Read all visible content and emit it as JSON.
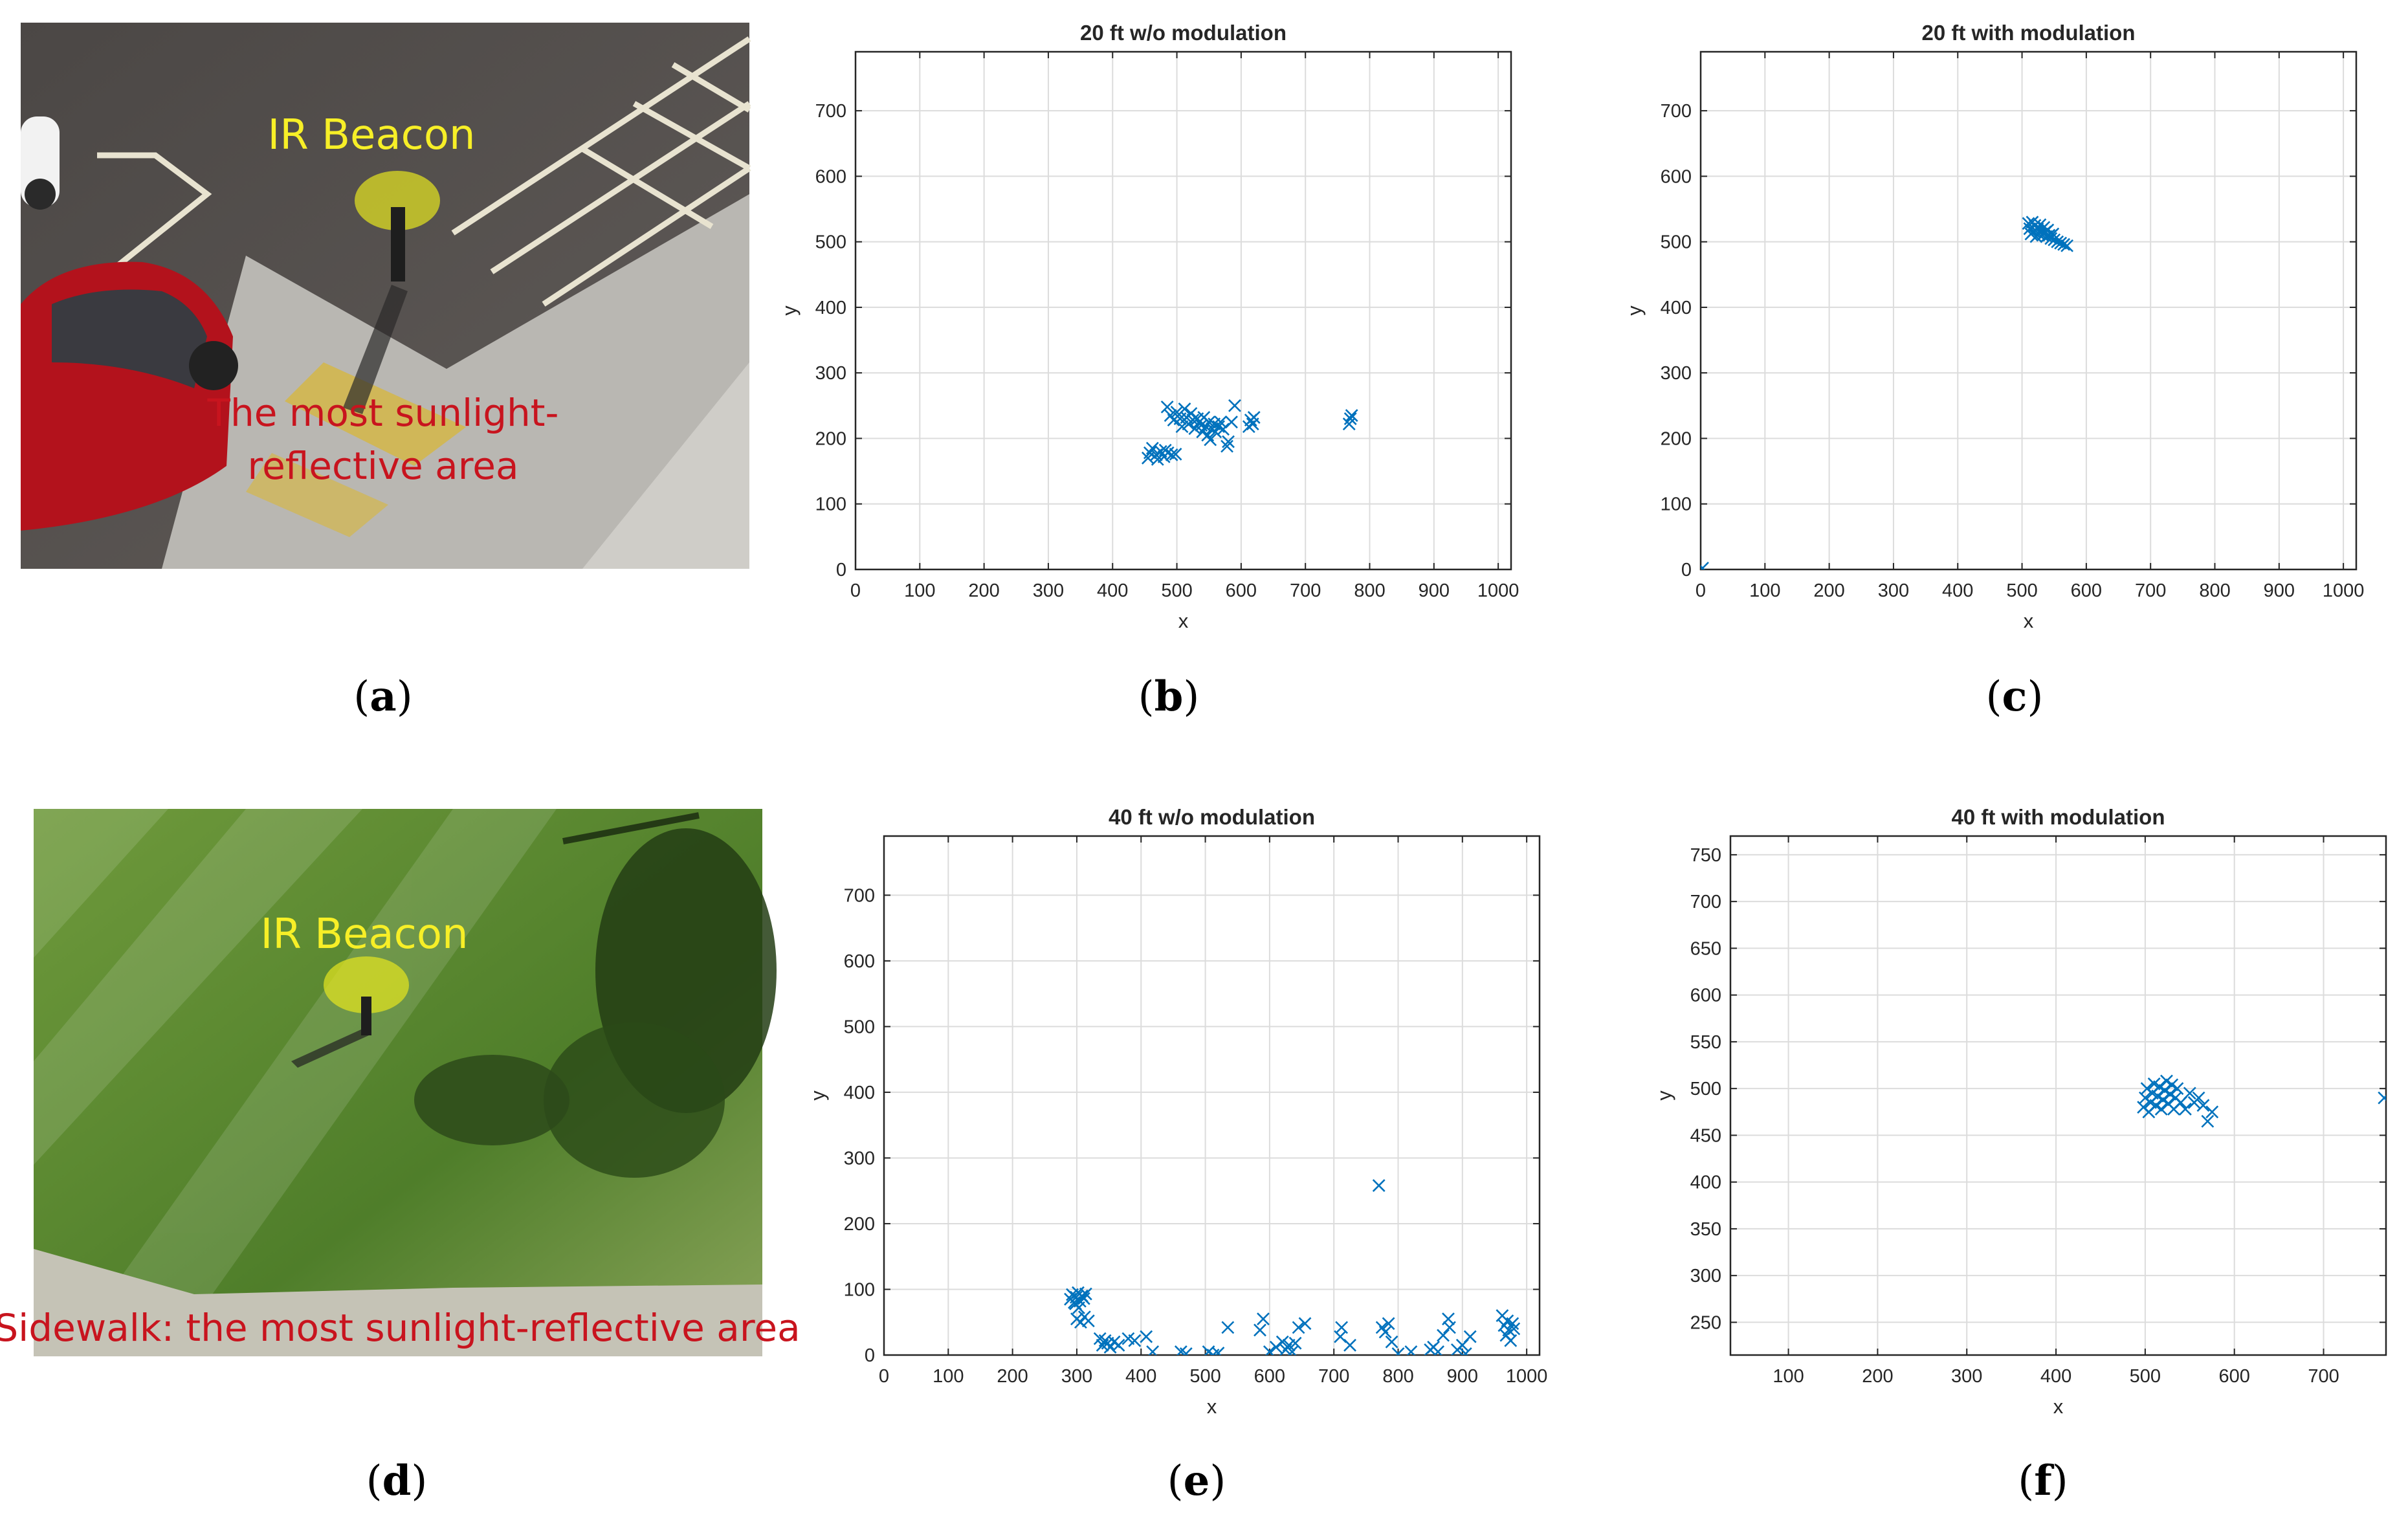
{
  "photos": [
    {
      "id": "a",
      "sub": "a",
      "labels": [
        "IR Beacon",
        "The most sunlight-",
        "reflective area"
      ]
    },
    {
      "id": "d",
      "sub": "d",
      "labels": [
        "IR Beacon",
        "Sidewalk: the most sunlight-reflective area"
      ]
    }
  ],
  "colors": {
    "marker": "#0072BD",
    "grid": "#dcdcdc",
    "axis": "#262626",
    "beacon": "#e6e620",
    "asphalt": "#55514f",
    "grass": "#5e8a33"
  },
  "chart_data": [
    {
      "id": "b",
      "sub": "b",
      "type": "scatter",
      "marker": "x",
      "title": "20 ft w/o modulation",
      "xlabel": "x",
      "ylabel": "y",
      "xlim": [
        0,
        1020
      ],
      "ylim": [
        0,
        790
      ],
      "grid": true,
      "xticks": [
        0,
        100,
        200,
        300,
        400,
        500,
        600,
        700,
        800,
        900,
        1000
      ],
      "yticks": [
        0,
        100,
        200,
        300,
        400,
        500,
        600,
        700
      ],
      "series": [
        {
          "points": [
            [
              455,
              170
            ],
            [
              458,
              178
            ],
            [
              462,
              185
            ],
            [
              468,
              175
            ],
            [
              475,
              180
            ],
            [
              480,
              172
            ],
            [
              486,
              178
            ],
            [
              492,
              175
            ],
            [
              498,
              176
            ],
            [
              482,
              182
            ],
            [
              470,
              168
            ],
            [
              485,
              248
            ],
            [
              490,
              235
            ],
            [
              495,
              228
            ],
            [
              500,
              240
            ],
            [
              505,
              230
            ],
            [
              508,
              218
            ],
            [
              512,
              245
            ],
            [
              515,
              232
            ],
            [
              518,
              222
            ],
            [
              522,
              238
            ],
            [
              525,
              228
            ],
            [
              528,
              215
            ],
            [
              532,
              230
            ],
            [
              535,
              225
            ],
            [
              538,
              220
            ],
            [
              540,
              210
            ],
            [
              542,
              232
            ],
            [
              545,
              218
            ],
            [
              548,
              205
            ],
            [
              550,
              225
            ],
            [
              552,
              198
            ],
            [
              555,
              215
            ],
            [
              558,
              222
            ],
            [
              560,
              210
            ],
            [
              565,
              218
            ],
            [
              568,
              225
            ],
            [
              572,
              214
            ],
            [
              578,
              188
            ],
            [
              580,
              195
            ],
            [
              585,
              225
            ],
            [
              590,
              250
            ],
            [
              612,
              218
            ],
            [
              615,
              228
            ],
            [
              620,
              232
            ],
            [
              618,
              222
            ],
            [
              768,
              222
            ],
            [
              770,
              230
            ],
            [
              772,
              235
            ]
          ]
        }
      ]
    },
    {
      "id": "c",
      "sub": "c",
      "type": "scatter",
      "marker": "x",
      "title": "20 ft with modulation",
      "xlabel": "x",
      "ylabel": "y",
      "xlim": [
        0,
        1020
      ],
      "ylim": [
        0,
        790
      ],
      "grid": true,
      "xticks": [
        0,
        100,
        200,
        300,
        400,
        500,
        600,
        700,
        800,
        900,
        1000
      ],
      "yticks": [
        0,
        100,
        200,
        300,
        400,
        500,
        600,
        700
      ],
      "series": [
        {
          "points": [
            [
              3,
              2
            ],
            [
              510,
              528
            ],
            [
              512,
              520
            ],
            [
              514,
              512
            ],
            [
              516,
              530
            ],
            [
              518,
              516
            ],
            [
              520,
              525
            ],
            [
              522,
              508
            ],
            [
              524,
              520
            ],
            [
              526,
              512
            ],
            [
              528,
              526
            ],
            [
              530,
              518
            ],
            [
              532,
              510
            ],
            [
              534,
              522
            ],
            [
              536,
              515
            ],
            [
              538,
              508
            ],
            [
              540,
              518
            ],
            [
              542,
              510
            ],
            [
              545,
              505
            ],
            [
              548,
              512
            ],
            [
              550,
              503
            ],
            [
              555,
              500
            ],
            [
              560,
              498
            ],
            [
              565,
              496
            ],
            [
              570,
              494
            ]
          ]
        }
      ]
    },
    {
      "id": "e",
      "sub": "e",
      "type": "scatter",
      "marker": "x",
      "title": "40 ft w/o modulation",
      "xlabel": "x",
      "ylabel": "y",
      "xlim": [
        0,
        1020
      ],
      "ylim": [
        0,
        790
      ],
      "grid": true,
      "xticks": [
        0,
        100,
        200,
        300,
        400,
        500,
        600,
        700,
        800,
        900,
        1000
      ],
      "yticks": [
        0,
        100,
        200,
        300,
        400,
        500,
        600,
        700
      ],
      "series": [
        {
          "points": [
            [
              290,
              85
            ],
            [
              293,
              92
            ],
            [
              296,
              80
            ],
            [
              299,
              88
            ],
            [
              302,
              95
            ],
            [
              305,
              82
            ],
            [
              308,
              90
            ],
            [
              311,
              86
            ],
            [
              314,
              93
            ],
            [
              298,
              78
            ],
            [
              303,
              72
            ],
            [
              300,
              55
            ],
            [
              306,
              50
            ],
            [
              312,
              58
            ],
            [
              318,
              52
            ],
            [
              336,
              25
            ],
            [
              340,
              15
            ],
            [
              344,
              22
            ],
            [
              348,
              18
            ],
            [
              352,
              12
            ],
            [
              358,
              20
            ],
            [
              365,
              15
            ],
            [
              380,
              25
            ],
            [
              390,
              22
            ],
            [
              408,
              28
            ],
            [
              418,
              5
            ],
            [
              462,
              5
            ],
            [
              470,
              2
            ],
            [
              505,
              5
            ],
            [
              512,
              0
            ],
            [
              520,
              3
            ],
            [
              535,
              42
            ],
            [
              585,
              38
            ],
            [
              590,
              55
            ],
            [
              600,
              5
            ],
            [
              610,
              12
            ],
            [
              620,
              20
            ],
            [
              625,
              8
            ],
            [
              630,
              15
            ],
            [
              635,
              5
            ],
            [
              640,
              18
            ],
            [
              645,
              42
            ],
            [
              655,
              48
            ],
            [
              710,
              28
            ],
            [
              712,
              42
            ],
            [
              725,
              15
            ],
            [
              770,
              258
            ],
            [
              775,
              42
            ],
            [
              780,
              35
            ],
            [
              785,
              48
            ],
            [
              790,
              20
            ],
            [
              800,
              2
            ],
            [
              820,
              5
            ],
            [
              850,
              8
            ],
            [
              855,
              12
            ],
            [
              862,
              5
            ],
            [
              870,
              30
            ],
            [
              878,
              55
            ],
            [
              880,
              42
            ],
            [
              892,
              8
            ],
            [
              900,
              15
            ],
            [
              905,
              2
            ],
            [
              912,
              28
            ],
            [
              962,
              60
            ],
            [
              965,
              45
            ],
            [
              968,
              30
            ],
            [
              970,
              52
            ],
            [
              972,
              38
            ],
            [
              975,
              22
            ],
            [
              978,
              48
            ],
            [
              980,
              40
            ]
          ]
        }
      ]
    },
    {
      "id": "f",
      "sub": "f",
      "type": "scatter",
      "marker": "x",
      "title": "40 ft with modulation",
      "xlabel": "x",
      "ylabel": "y",
      "xlim": [
        35,
        770
      ],
      "ylim": [
        215,
        770
      ],
      "grid": true,
      "xticks": [
        100,
        200,
        300,
        400,
        500,
        600,
        700
      ],
      "yticks": [
        250,
        300,
        350,
        400,
        450,
        500,
        550,
        600,
        650,
        700,
        750
      ],
      "series": [
        {
          "points": [
            [
              498,
              480
            ],
            [
              500,
              490
            ],
            [
              502,
              500
            ],
            [
              504,
              475
            ],
            [
              506,
              485
            ],
            [
              508,
              495
            ],
            [
              510,
              505
            ],
            [
              512,
              482
            ],
            [
              514,
              492
            ],
            [
              516,
              502
            ],
            [
              518,
              478
            ],
            [
              520,
              488
            ],
            [
              522,
              498
            ],
            [
              524,
              508
            ],
            [
              526,
              484
            ],
            [
              528,
              494
            ],
            [
              530,
              504
            ],
            [
              532,
              478
            ],
            [
              534,
              490
            ],
            [
              536,
              500
            ],
            [
              540,
              485
            ],
            [
              545,
              478
            ],
            [
              550,
              495
            ],
            [
              555,
              485
            ],
            [
              560,
              490
            ],
            [
              565,
              482
            ],
            [
              570,
              465
            ],
            [
              575,
              475
            ],
            [
              768,
              490
            ]
          ]
        }
      ]
    }
  ]
}
